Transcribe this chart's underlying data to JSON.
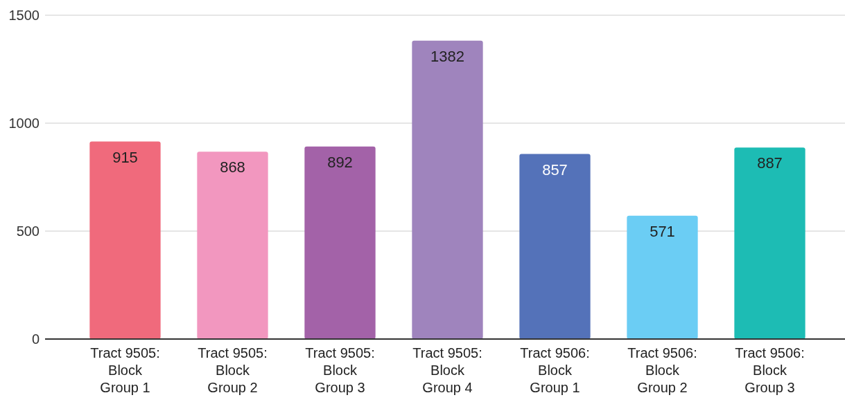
{
  "chart_data": {
    "type": "bar",
    "categories": [
      "Tract 9505:\nBlock\nGroup 1",
      "Tract 9505:\nBlock\nGroup 2",
      "Tract 9505:\nBlock\nGroup 3",
      "Tract 9505:\nBlock\nGroup 4",
      "Tract 9506:\nBlock\nGroup 1",
      "Tract 9506:\nBlock\nGroup 2",
      "Tract 9506:\nBlock\nGroup 3"
    ],
    "values": [
      915,
      868,
      892,
      1382,
      857,
      571,
      887
    ],
    "colors": [
      "#f06a7c",
      "#f297bf",
      "#a362a8",
      "#9f84bd",
      "#5472b9",
      "#6bcdf4",
      "#1dbcb4"
    ],
    "ylim": [
      0,
      1500
    ],
    "yticks": [
      0,
      500,
      1000,
      1500
    ],
    "grid": "y",
    "data_labels": true
  }
}
